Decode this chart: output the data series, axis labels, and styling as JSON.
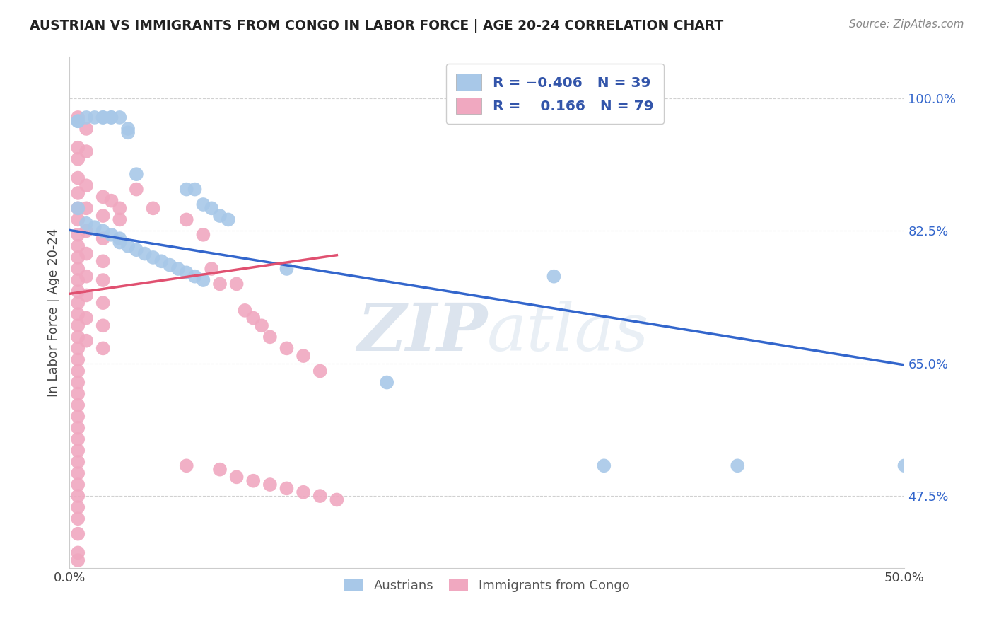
{
  "title": "AUSTRIAN VS IMMIGRANTS FROM CONGO IN LABOR FORCE | AGE 20-24 CORRELATION CHART",
  "source": "Source: ZipAtlas.com",
  "ylabel": "In Labor Force | Age 20-24",
  "ytick_labels": [
    "47.5%",
    "65.0%",
    "82.5%",
    "100.0%"
  ],
  "ytick_values": [
    0.475,
    0.65,
    0.825,
    1.0
  ],
  "xmin": 0.0,
  "xmax": 0.5,
  "ymin": 0.38,
  "ymax": 1.055,
  "watermark_zip": "ZIP",
  "watermark_atlas": "atlas",
  "legend_bottom": [
    "Austrians",
    "Immigrants from Congo"
  ],
  "austrian_color": "#a8c8e8",
  "congo_color": "#f0a8c0",
  "trend_blue": "#3366cc",
  "trend_pink": "#e05070",
  "blue_trend_x": [
    0.0,
    0.5
  ],
  "blue_trend_y": [
    0.826,
    0.648
  ],
  "pink_trend_x": [
    0.0,
    0.16
  ],
  "pink_trend_y": [
    0.742,
    0.793
  ],
  "austrian_points": [
    [
      0.005,
      0.97
    ],
    [
      0.005,
      0.97
    ],
    [
      0.01,
      0.975
    ],
    [
      0.015,
      0.975
    ],
    [
      0.02,
      0.975
    ],
    [
      0.02,
      0.975
    ],
    [
      0.025,
      0.975
    ],
    [
      0.025,
      0.975
    ],
    [
      0.03,
      0.975
    ],
    [
      0.035,
      0.96
    ],
    [
      0.035,
      0.955
    ],
    [
      0.04,
      0.9
    ],
    [
      0.07,
      0.88
    ],
    [
      0.075,
      0.88
    ],
    [
      0.08,
      0.86
    ],
    [
      0.085,
      0.855
    ],
    [
      0.09,
      0.845
    ],
    [
      0.095,
      0.84
    ],
    [
      0.005,
      0.855
    ],
    [
      0.01,
      0.835
    ],
    [
      0.015,
      0.83
    ],
    [
      0.02,
      0.825
    ],
    [
      0.025,
      0.82
    ],
    [
      0.03,
      0.815
    ],
    [
      0.03,
      0.81
    ],
    [
      0.035,
      0.805
    ],
    [
      0.04,
      0.8
    ],
    [
      0.045,
      0.795
    ],
    [
      0.05,
      0.79
    ],
    [
      0.055,
      0.785
    ],
    [
      0.06,
      0.78
    ],
    [
      0.065,
      0.775
    ],
    [
      0.07,
      0.77
    ],
    [
      0.075,
      0.765
    ],
    [
      0.08,
      0.76
    ],
    [
      0.13,
      0.775
    ],
    [
      0.29,
      0.765
    ],
    [
      0.19,
      0.625
    ],
    [
      0.32,
      0.515
    ],
    [
      0.4,
      0.515
    ],
    [
      0.5,
      0.515
    ]
  ],
  "congo_points": [
    [
      0.005,
      0.975
    ],
    [
      0.005,
      0.935
    ],
    [
      0.005,
      0.92
    ],
    [
      0.005,
      0.895
    ],
    [
      0.005,
      0.875
    ],
    [
      0.005,
      0.855
    ],
    [
      0.005,
      0.84
    ],
    [
      0.005,
      0.82
    ],
    [
      0.005,
      0.805
    ],
    [
      0.005,
      0.79
    ],
    [
      0.005,
      0.775
    ],
    [
      0.005,
      0.76
    ],
    [
      0.005,
      0.745
    ],
    [
      0.005,
      0.73
    ],
    [
      0.005,
      0.715
    ],
    [
      0.005,
      0.7
    ],
    [
      0.005,
      0.685
    ],
    [
      0.005,
      0.67
    ],
    [
      0.005,
      0.655
    ],
    [
      0.005,
      0.64
    ],
    [
      0.005,
      0.625
    ],
    [
      0.005,
      0.61
    ],
    [
      0.005,
      0.595
    ],
    [
      0.005,
      0.58
    ],
    [
      0.005,
      0.565
    ],
    [
      0.005,
      0.55
    ],
    [
      0.005,
      0.535
    ],
    [
      0.005,
      0.52
    ],
    [
      0.005,
      0.505
    ],
    [
      0.005,
      0.49
    ],
    [
      0.005,
      0.475
    ],
    [
      0.005,
      0.46
    ],
    [
      0.005,
      0.445
    ],
    [
      0.01,
      0.96
    ],
    [
      0.01,
      0.93
    ],
    [
      0.01,
      0.885
    ],
    [
      0.01,
      0.855
    ],
    [
      0.01,
      0.825
    ],
    [
      0.01,
      0.795
    ],
    [
      0.01,
      0.765
    ],
    [
      0.01,
      0.74
    ],
    [
      0.01,
      0.71
    ],
    [
      0.01,
      0.68
    ],
    [
      0.02,
      0.87
    ],
    [
      0.02,
      0.845
    ],
    [
      0.02,
      0.815
    ],
    [
      0.02,
      0.785
    ],
    [
      0.02,
      0.76
    ],
    [
      0.02,
      0.73
    ],
    [
      0.02,
      0.7
    ],
    [
      0.02,
      0.67
    ],
    [
      0.025,
      0.865
    ],
    [
      0.03,
      0.855
    ],
    [
      0.03,
      0.84
    ],
    [
      0.04,
      0.88
    ],
    [
      0.05,
      0.855
    ],
    [
      0.07,
      0.84
    ],
    [
      0.08,
      0.82
    ],
    [
      0.085,
      0.775
    ],
    [
      0.09,
      0.755
    ],
    [
      0.1,
      0.755
    ],
    [
      0.105,
      0.72
    ],
    [
      0.11,
      0.71
    ],
    [
      0.115,
      0.7
    ],
    [
      0.12,
      0.685
    ],
    [
      0.13,
      0.67
    ],
    [
      0.14,
      0.66
    ],
    [
      0.15,
      0.64
    ],
    [
      0.005,
      0.425
    ],
    [
      0.005,
      0.4
    ],
    [
      0.005,
      0.39
    ],
    [
      0.07,
      0.515
    ],
    [
      0.09,
      0.51
    ],
    [
      0.1,
      0.5
    ],
    [
      0.11,
      0.495
    ],
    [
      0.12,
      0.49
    ],
    [
      0.13,
      0.485
    ],
    [
      0.14,
      0.48
    ],
    [
      0.15,
      0.475
    ],
    [
      0.16,
      0.47
    ]
  ]
}
